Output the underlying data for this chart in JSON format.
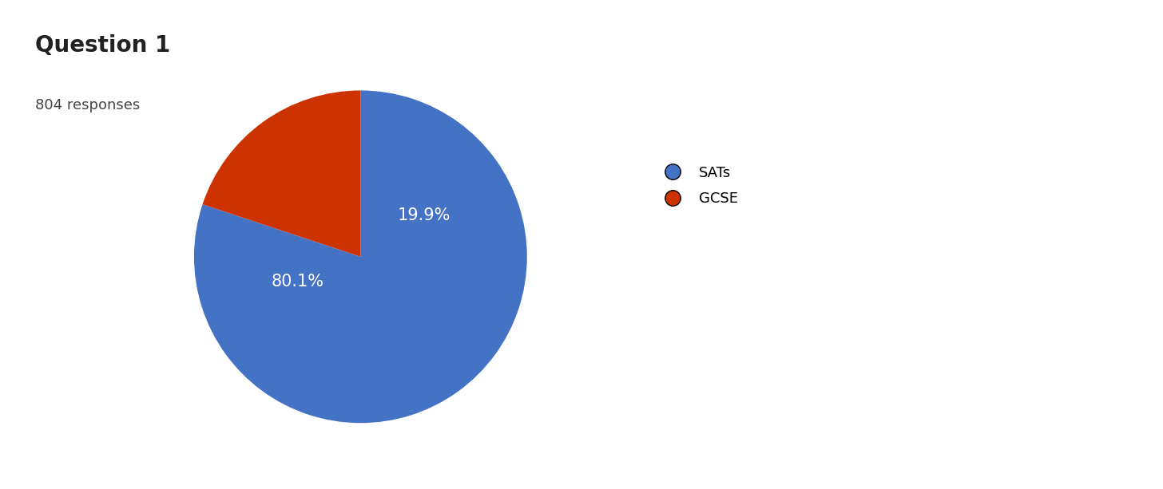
{
  "title": "Question 1",
  "subtitle": "804 responses",
  "labels": [
    "SATs",
    "GCSE"
  ],
  "values": [
    80.1,
    19.9
  ],
  "colors": [
    "#4472c4",
    "#cc3300"
  ],
  "pct_labels": [
    "80.1%",
    "19.9%"
  ],
  "title_fontsize": 20,
  "subtitle_fontsize": 13,
  "pct_fontsize": 15,
  "legend_fontsize": 13,
  "background_color": "#ffffff",
  "startangle": 90,
  "text_color_inside": "#ffffff"
}
